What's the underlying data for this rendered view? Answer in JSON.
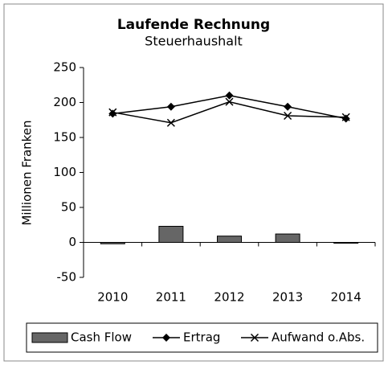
{
  "chart_data": {
    "type": "combo",
    "title": "Laufende Rechnung",
    "subtitle": "Steuerhaushalt",
    "y_label": "Millionen Franken",
    "categories": [
      "2010",
      "2011",
      "2012",
      "2013",
      "2014"
    ],
    "series": [
      {
        "name": "Cash Flow",
        "type": "bar",
        "color": "#666666",
        "values": [
          -2,
          23,
          9,
          12,
          -1
        ]
      },
      {
        "name": "Ertrag",
        "type": "line",
        "marker": "diamond",
        "color": "#000000",
        "values": [
          184,
          194,
          210,
          194,
          177
        ]
      },
      {
        "name": "Aufwand o.Abs.",
        "type": "line",
        "marker": "x",
        "color": "#000000",
        "values": [
          186,
          171,
          201,
          181,
          179
        ]
      }
    ],
    "ylim": [
      -50,
      250
    ],
    "yticks": [
      -50,
      0,
      50,
      100,
      150,
      200,
      250
    ],
    "legend": "bottom"
  }
}
